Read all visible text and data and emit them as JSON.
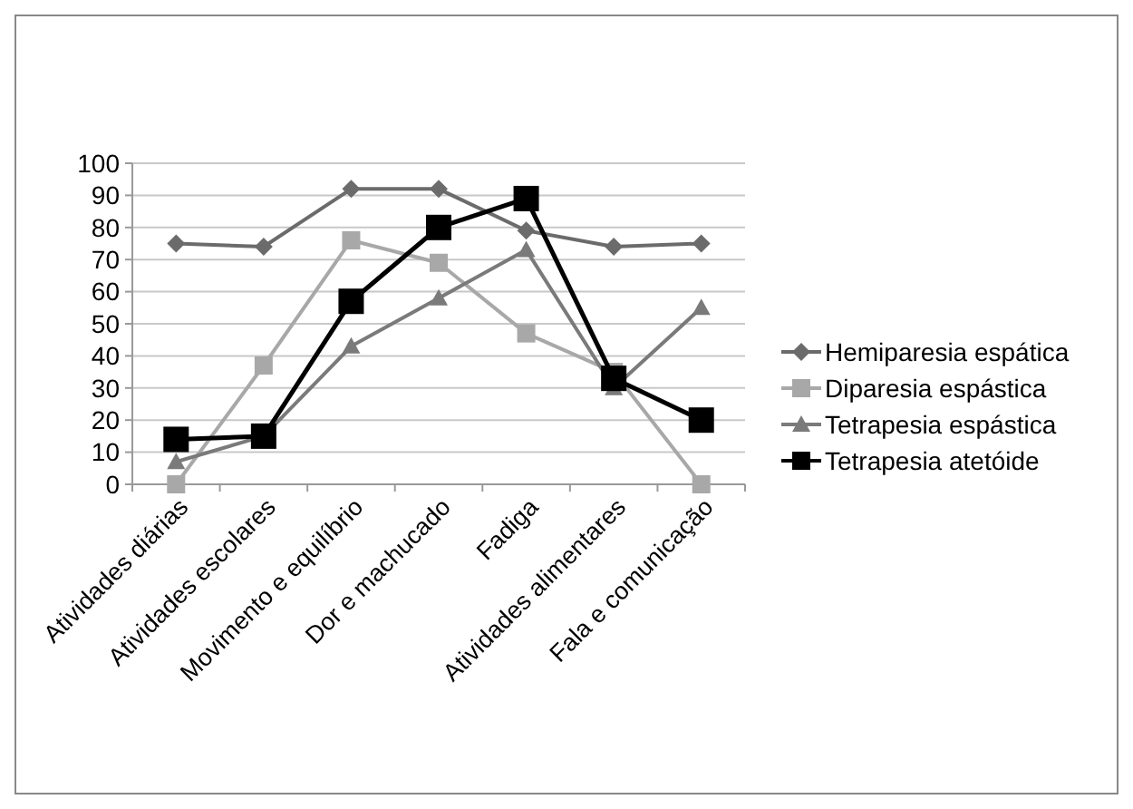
{
  "chart_data": {
    "type": "line",
    "categories": [
      "Atividades diárias",
      "Atividades escolares",
      "Movimento e equilíbrio",
      "Dor e machucado",
      "Fadiga",
      "Atividades alimentares",
      "Fala e comunicação"
    ],
    "series": [
      {
        "name": "Hemiparesia espática",
        "color": "#6b6b6b",
        "marker": "diamond",
        "values": [
          75,
          74,
          92,
          92,
          79,
          74,
          75
        ]
      },
      {
        "name": "Diparesia espástica",
        "color": "#a8a8a8",
        "marker": "square",
        "values": [
          0,
          37,
          76,
          69,
          47,
          35,
          0
        ]
      },
      {
        "name": "Tetrapesia espástica",
        "color": "#7a7a7a",
        "marker": "triangle",
        "values": [
          7,
          15,
          43,
          58,
          73,
          30,
          55
        ]
      },
      {
        "name": "Tetrapesia atetóide",
        "color": "#000000",
        "marker": "square",
        "values": [
          14,
          15,
          57,
          80,
          89,
          33,
          20
        ]
      }
    ],
    "ylim": [
      0,
      100
    ],
    "yticks": [
      0,
      10,
      20,
      30,
      40,
      50,
      60,
      70,
      80,
      90,
      100
    ],
    "grid": "y",
    "legend": "right",
    "line_style": "solid"
  }
}
